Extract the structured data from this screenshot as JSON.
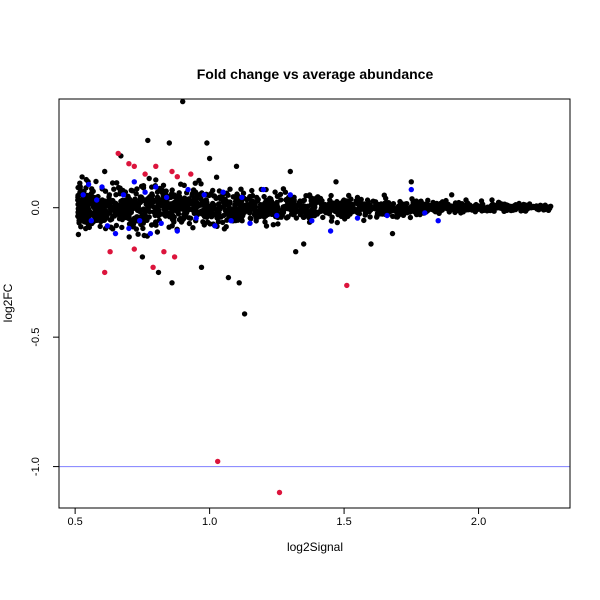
{
  "chart_data": {
    "type": "scatter",
    "title": "Fold change vs average abundance",
    "xlabel": "log2Signal",
    "ylabel": "log2FC",
    "xlim": [
      0.44,
      2.34
    ],
    "ylim": [
      -1.16,
      0.42
    ],
    "x_ticks": [
      0.5,
      1.0,
      1.5,
      2.0
    ],
    "x_tick_labels": [
      "0.5",
      "1.0",
      "1.5",
      "2.0"
    ],
    "y_ticks": [
      0.0,
      -0.5,
      -1.0
    ],
    "y_tick_labels": [
      "0.0",
      "-0.5",
      "-1.0"
    ],
    "grid": false,
    "reference_line": {
      "y": -1.0,
      "color": "#7f7fff"
    },
    "colors": {
      "black": "#000000",
      "blue": "#0000ff",
      "red": "#dc143c"
    },
    "series": [
      {
        "color": "black",
        "dense_cloud": {
          "x_range": [
            0.51,
            2.27
          ],
          "y_center": 0.0,
          "spread_at_x": [
            [
              0.52,
              0.08
            ],
            [
              0.7,
              0.085
            ],
            [
              0.9,
              0.08
            ],
            [
              1.1,
              0.065
            ],
            [
              1.3,
              0.05
            ],
            [
              1.5,
              0.04
            ],
            [
              1.7,
              0.03
            ],
            [
              1.9,
              0.022
            ],
            [
              2.1,
              0.015
            ],
            [
              2.27,
              0.008
            ]
          ]
        },
        "points": [
          {
            "x": 0.9,
            "y": 0.41
          },
          {
            "x": 0.85,
            "y": 0.25
          },
          {
            "x": 0.99,
            "y": 0.25
          },
          {
            "x": 0.77,
            "y": 0.26
          },
          {
            "x": 0.67,
            "y": 0.2
          },
          {
            "x": 1.0,
            "y": 0.19
          },
          {
            "x": 1.1,
            "y": 0.16
          },
          {
            "x": 1.3,
            "y": 0.14
          },
          {
            "x": 0.61,
            "y": 0.14
          },
          {
            "x": 1.47,
            "y": 0.1
          },
          {
            "x": 0.75,
            "y": -0.19
          },
          {
            "x": 0.81,
            "y": -0.25
          },
          {
            "x": 0.86,
            "y": -0.29
          },
          {
            "x": 0.97,
            "y": -0.23
          },
          {
            "x": 1.07,
            "y": -0.27
          },
          {
            "x": 1.11,
            "y": -0.29
          },
          {
            "x": 1.13,
            "y": -0.41
          },
          {
            "x": 1.32,
            "y": -0.17
          },
          {
            "x": 1.35,
            "y": -0.14
          },
          {
            "x": 1.6,
            "y": -0.14
          },
          {
            "x": 1.68,
            "y": -0.1
          },
          {
            "x": 1.75,
            "y": 0.1
          },
          {
            "x": 1.9,
            "y": 0.05
          },
          {
            "x": 2.05,
            "y": 0.03
          },
          {
            "x": 2.26,
            "y": -0.01
          }
        ]
      },
      {
        "color": "blue",
        "points": [
          {
            "x": 0.55,
            "y": 0.09
          },
          {
            "x": 0.53,
            "y": 0.05
          },
          {
            "x": 0.58,
            "y": 0.03
          },
          {
            "x": 0.6,
            "y": 0.08
          },
          {
            "x": 0.56,
            "y": -0.05
          },
          {
            "x": 0.62,
            "y": -0.07
          },
          {
            "x": 0.65,
            "y": -0.1
          },
          {
            "x": 0.68,
            "y": 0.05
          },
          {
            "x": 0.7,
            "y": -0.08
          },
          {
            "x": 0.72,
            "y": 0.1
          },
          {
            "x": 0.74,
            "y": -0.05
          },
          {
            "x": 0.76,
            "y": 0.06
          },
          {
            "x": 0.78,
            "y": -0.1
          },
          {
            "x": 0.8,
            "y": 0.08
          },
          {
            "x": 0.82,
            "y": -0.06
          },
          {
            "x": 0.84,
            "y": 0.04
          },
          {
            "x": 0.88,
            "y": -0.09
          },
          {
            "x": 0.92,
            "y": 0.07
          },
          {
            "x": 0.95,
            "y": -0.04
          },
          {
            "x": 0.98,
            "y": 0.05
          },
          {
            "x": 1.02,
            "y": -0.07
          },
          {
            "x": 1.05,
            "y": 0.06
          },
          {
            "x": 1.08,
            "y": -0.05
          },
          {
            "x": 1.12,
            "y": 0.04
          },
          {
            "x": 1.15,
            "y": -0.06
          },
          {
            "x": 1.2,
            "y": 0.07
          },
          {
            "x": 1.25,
            "y": -0.03
          },
          {
            "x": 1.3,
            "y": 0.05
          },
          {
            "x": 1.38,
            "y": -0.05
          },
          {
            "x": 1.45,
            "y": -0.09
          },
          {
            "x": 1.55,
            "y": -0.04
          },
          {
            "x": 1.66,
            "y": -0.03
          },
          {
            "x": 1.75,
            "y": 0.07
          },
          {
            "x": 1.8,
            "y": -0.02
          },
          {
            "x": 1.85,
            "y": -0.05
          }
        ]
      },
      {
        "color": "red",
        "points": [
          {
            "x": 0.66,
            "y": 0.21
          },
          {
            "x": 0.7,
            "y": 0.17
          },
          {
            "x": 0.72,
            "y": 0.16
          },
          {
            "x": 0.8,
            "y": 0.16
          },
          {
            "x": 0.86,
            "y": 0.14
          },
          {
            "x": 0.88,
            "y": 0.12
          },
          {
            "x": 0.93,
            "y": 0.13
          },
          {
            "x": 0.76,
            "y": 0.13
          },
          {
            "x": 0.72,
            "y": -0.16
          },
          {
            "x": 0.79,
            "y": -0.23
          },
          {
            "x": 0.87,
            "y": -0.19
          },
          {
            "x": 0.83,
            "y": -0.17
          },
          {
            "x": 0.63,
            "y": -0.17
          },
          {
            "x": 0.61,
            "y": -0.25
          },
          {
            "x": 1.51,
            "y": -0.3
          },
          {
            "x": 1.03,
            "y": -0.98
          },
          {
            "x": 1.26,
            "y": -1.1
          }
        ]
      }
    ]
  }
}
